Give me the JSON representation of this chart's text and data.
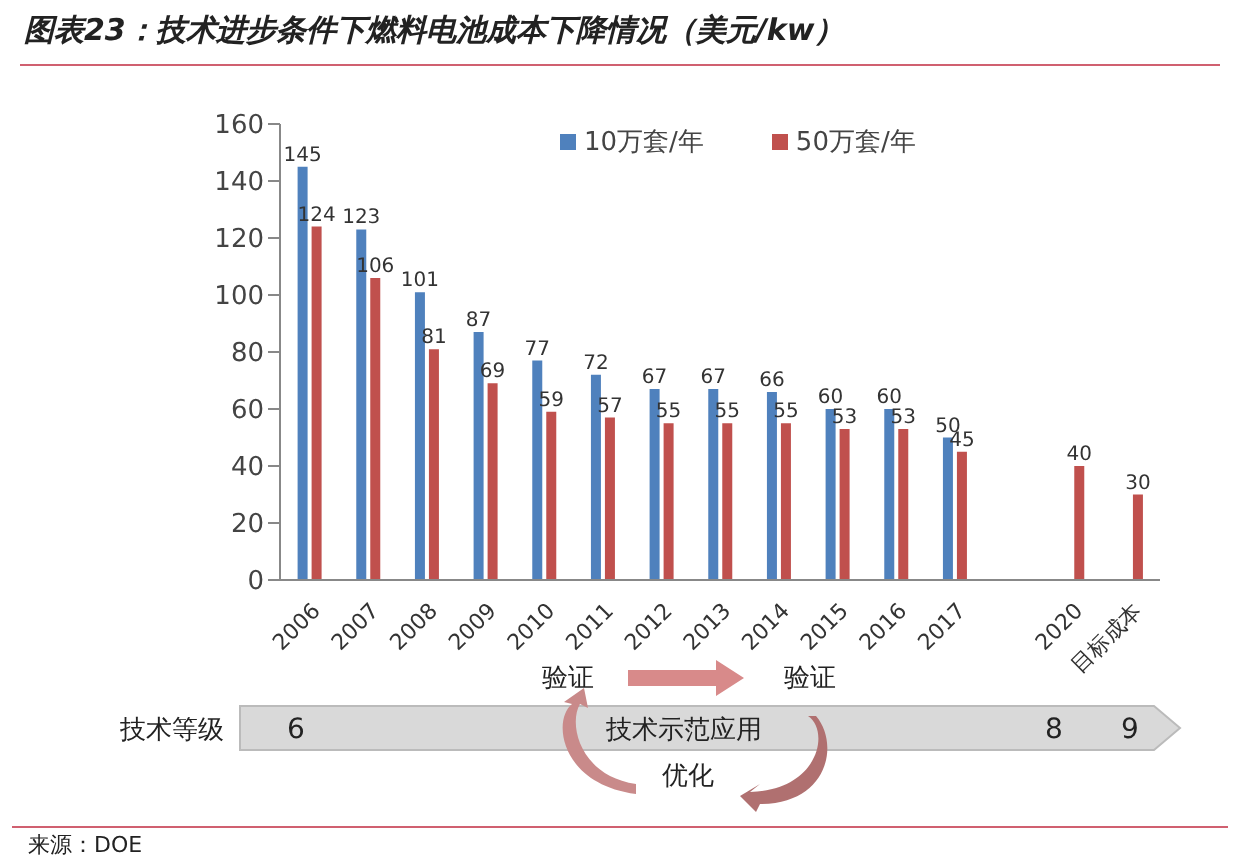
{
  "chart_data": {
    "type": "bar",
    "title": "图表23：技术进步条件下燃料电池成本下降情况（美元/kw）",
    "categories": [
      "2006",
      "2007",
      "2008",
      "2009",
      "2010",
      "2011",
      "2012",
      "2013",
      "2014",
      "2015",
      "2016",
      "2017",
      null,
      "2020",
      "目标成本"
    ],
    "series": [
      {
        "name": "10万套/年",
        "color": "#4f81bd",
        "values": [
          145,
          123,
          101,
          87,
          77,
          72,
          67,
          67,
          66,
          60,
          60,
          50,
          null,
          null,
          null
        ]
      },
      {
        "name": "50万套/年",
        "color": "#c0504d",
        "values": [
          124,
          106,
          81,
          69,
          59,
          57,
          55,
          55,
          55,
          53,
          53,
          45,
          null,
          40,
          30
        ]
      }
    ],
    "ylim": [
      0,
      160
    ],
    "yticks": [
      0,
      20,
      40,
      60,
      80,
      100,
      120,
      140,
      160
    ],
    "grid": false,
    "legend": "top right",
    "data_labels": true,
    "annotations": [
      "验证",
      "验证",
      "技术等级",
      "6",
      "技术示范应用",
      "8",
      "9",
      "优化",
      "来源：DOE"
    ]
  }
}
